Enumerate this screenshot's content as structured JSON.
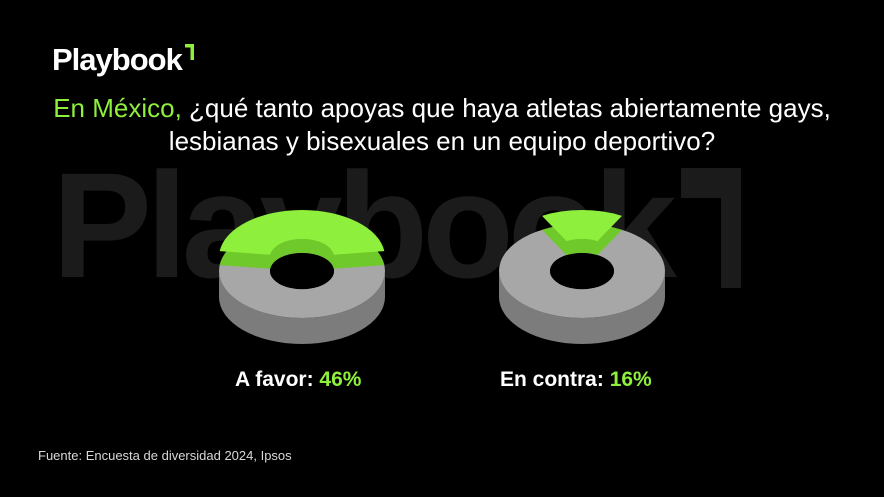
{
  "logo": {
    "text": "Playbook"
  },
  "watermark": {
    "text": "Playbook"
  },
  "title": {
    "highlight": "En México,",
    "rest": " ¿qué tanto apoyas que haya atletas abiertamente gays, lesbianas y bisexuales en un equipo deportivo?"
  },
  "colors": {
    "accent": "#8ef03c",
    "gray": "#a7a7a7",
    "background": "#000000"
  },
  "chart_data": [
    {
      "type": "pie",
      "categories": [
        "A favor"
      ],
      "values": [
        46
      ],
      "label": "A favor:",
      "value_text": "46%"
    },
    {
      "type": "pie",
      "categories": [
        "En contra"
      ],
      "values": [
        16
      ],
      "label": "En contra:",
      "value_text": "16%"
    }
  ],
  "source": "Fuente:  Encuesta de diversidad 2024, Ipsos"
}
